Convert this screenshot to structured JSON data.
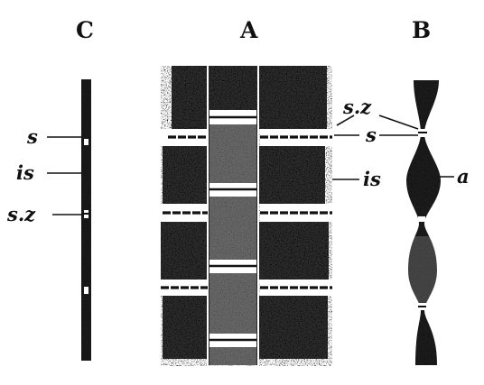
{
  "panels": {
    "c": {
      "letter": "C",
      "labels": {
        "s": "s",
        "is": "is",
        "sz": "s.z"
      }
    },
    "a": {
      "letter": "A",
      "labels": {
        "sz": "s.z",
        "s": "s",
        "is": "is"
      }
    },
    "b": {
      "letter": "B",
      "labels": {
        "a": "a"
      }
    }
  },
  "colors": {
    "ink": "#111111",
    "paper": "#ffffff"
  }
}
